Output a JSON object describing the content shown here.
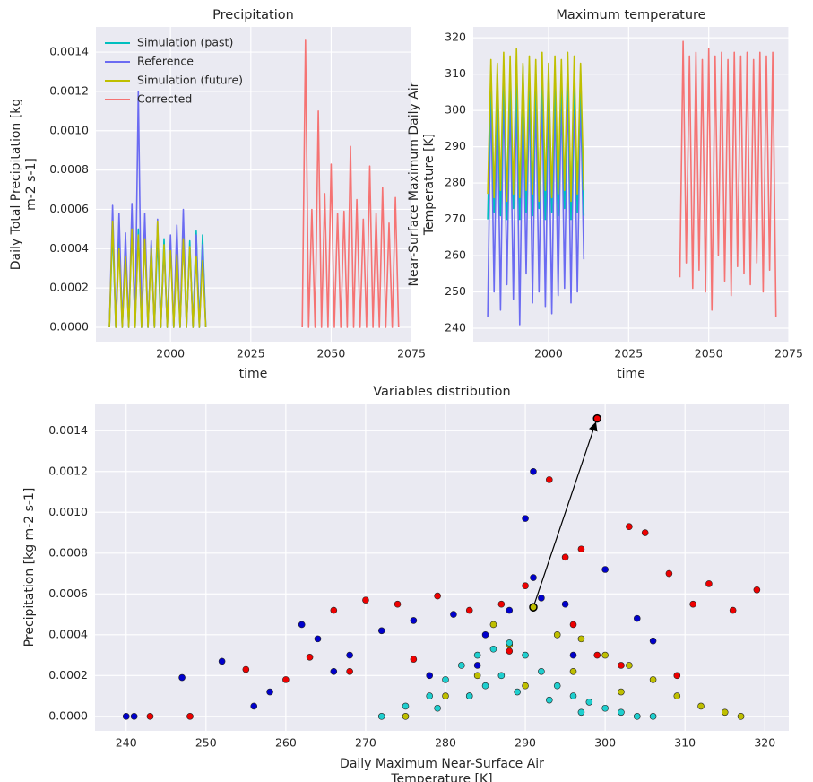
{
  "chart_data": [
    {
      "type": "line",
      "title": "Precipitation",
      "xlabel": "time",
      "ylabel": [
        "Daily Total Precipitation [kg",
        "m-2 s-1]"
      ],
      "xlim": [
        1976.8,
        2074.7
      ],
      "ylim": [
        -7.3e-05,
        0.001528
      ],
      "xticks": [
        2000,
        2025,
        2050,
        2075
      ],
      "yticks": [
        {
          "value": 0,
          "label": "0.0000"
        },
        {
          "value": 0.0002,
          "label": "0.0002"
        },
        {
          "value": 0.0004,
          "label": "0.0004"
        },
        {
          "value": 0.0006,
          "label": "0.0006"
        },
        {
          "value": 0.0008,
          "label": "0.0008"
        },
        {
          "value": 0.001,
          "label": "0.0010"
        },
        {
          "value": 0.0012,
          "label": "0.0012"
        },
        {
          "value": 0.0014,
          "label": "0.0014"
        }
      ],
      "grid": true,
      "legend": "upper left",
      "series": [
        {
          "name": "Simulation (past)",
          "color": "#00bfbf",
          "x": [
            1981,
            1982,
            1983,
            1984,
            1985,
            1986,
            1987,
            1988,
            1989,
            1990,
            1991,
            1992,
            1993,
            1994,
            1995,
            1996,
            1997,
            1998,
            1999,
            2000,
            2001,
            2002,
            2003,
            2004,
            2005,
            2006,
            2007,
            2008,
            2009,
            2010,
            2011
          ],
          "values": [
            0,
            0.0005,
            0,
            0.00045,
            0,
            0.0004,
            0,
            0.00052,
            0,
            0.0005,
            0,
            0.00048,
            0,
            0.00042,
            0,
            0.00046,
            0,
            0.00045,
            0,
            0.00043,
            0,
            0.00041,
            0,
            0.00048,
            0,
            0.00044,
            0,
            0.00049,
            0,
            0.00047,
            0
          ]
        },
        {
          "name": "Reference",
          "color": "#6b6bf2",
          "x": [
            1981,
            1982,
            1983,
            1984,
            1985,
            1986,
            1987,
            1988,
            1989,
            1990,
            1991,
            1992,
            1993,
            1994,
            1995,
            1996,
            1997,
            1998,
            1999,
            2000,
            2001,
            2002,
            2003,
            2004,
            2005,
            2006,
            2007,
            2008,
            2009,
            2010,
            2011
          ],
          "values": [
            0,
            0.00062,
            0,
            0.00058,
            0,
            0.00048,
            0,
            0.00063,
            0,
            0.0012,
            0,
            0.00058,
            0,
            0.00044,
            0,
            0.00055,
            0,
            0.0004,
            0,
            0.00047,
            0,
            0.00052,
            0,
            0.0006,
            0,
            0.00041,
            0,
            0.00047,
            0,
            0.00042,
            0
          ]
        },
        {
          "name": "Simulation (future)",
          "color": "#bfbf00",
          "x": [
            1981,
            1982,
            1983,
            1984,
            1985,
            1986,
            1987,
            1988,
            1989,
            1990,
            1991,
            1992,
            1993,
            1994,
            1995,
            1996,
            1997,
            1998,
            1999,
            2000,
            2001,
            2002,
            2003,
            2004,
            2005,
            2006,
            2007,
            2008,
            2009,
            2010,
            2011
          ],
          "values": [
            0,
            0.00054,
            0,
            0.0004,
            0,
            0.00036,
            0,
            0.0005,
            0,
            0.00047,
            0,
            0.00045,
            0,
            0.0004,
            0,
            0.00054,
            0,
            0.00042,
            0,
            0.00039,
            0,
            0.00037,
            0,
            0.00045,
            0,
            0.00041,
            0,
            0.00036,
            0,
            0.00034,
            0
          ]
        },
        {
          "name": "Corrected",
          "color": "#f57373",
          "x": [
            2041,
            2042,
            2043,
            2044,
            2045,
            2046,
            2047,
            2048,
            2049,
            2050,
            2051,
            2052,
            2053,
            2054,
            2055,
            2056,
            2057,
            2058,
            2059,
            2060,
            2061,
            2062,
            2063,
            2064,
            2065,
            2066,
            2067,
            2068,
            2069,
            2070,
            2071
          ],
          "values": [
            0,
            0.00146,
            0,
            0.0006,
            0,
            0.0011,
            0,
            0.00068,
            0,
            0.00083,
            0,
            0.00058,
            0,
            0.00059,
            0,
            0.00092,
            0,
            0.00065,
            0,
            0.00055,
            0,
            0.00082,
            0,
            0.00058,
            0,
            0.00071,
            0,
            0.00053,
            0,
            0.00066,
            0
          ]
        }
      ]
    },
    {
      "type": "line",
      "title": "Maximum temperature",
      "xlabel": "time",
      "ylabel": [
        "Near-Surface Maximum Daily Air",
        "Temperature [K]"
      ],
      "xlim": [
        1976.5,
        2075
      ],
      "ylim": [
        236.3,
        323
      ],
      "xticks": [
        2000,
        2025,
        2050,
        2075
      ],
      "yticks": [
        240,
        250,
        260,
        270,
        280,
        290,
        300,
        310,
        320
      ],
      "grid": true,
      "series": [
        {
          "name": "Reference",
          "color": "#6b6bf2",
          "x": [
            1981,
            1982,
            1983,
            1984,
            1985,
            1986,
            1987,
            1988,
            1989,
            1990,
            1991,
            1992,
            1993,
            1994,
            1995,
            1996,
            1997,
            1998,
            1999,
            2000,
            2001,
            2002,
            2003,
            2004,
            2005,
            2006,
            2007,
            2008,
            2009,
            2010,
            2011
          ],
          "values": [
            243,
            306,
            250,
            305,
            245,
            307,
            252,
            304,
            248,
            306,
            241,
            305,
            255,
            307,
            247,
            305,
            250,
            306,
            246,
            304,
            244,
            305,
            249,
            306,
            251,
            307,
            247,
            305,
            250,
            304,
            259
          ]
        },
        {
          "name": "Simulation (past)",
          "color": "#00bfbf",
          "x": [
            1981,
            1982,
            1983,
            1984,
            1985,
            1986,
            1987,
            1988,
            1989,
            1990,
            1991,
            1992,
            1993,
            1994,
            1995,
            1996,
            1997,
            1998,
            1999,
            2000,
            2001,
            2002,
            2003,
            2004,
            2005,
            2006,
            2007,
            2008,
            2009,
            2010,
            2011
          ],
          "values": [
            270,
            311,
            272,
            310,
            271,
            312,
            270,
            311,
            273,
            310,
            270,
            312,
            272,
            311,
            271,
            310,
            273,
            312,
            270,
            311,
            272,
            310,
            271,
            311,
            273,
            312,
            270,
            310,
            272,
            311,
            271
          ]
        },
        {
          "name": "Simulation (future)",
          "color": "#bfbf00",
          "x": [
            1981,
            1982,
            1983,
            1984,
            1985,
            1986,
            1987,
            1988,
            1989,
            1990,
            1991,
            1992,
            1993,
            1994,
            1995,
            1996,
            1997,
            1998,
            1999,
            2000,
            2001,
            2002,
            2003,
            2004,
            2005,
            2006,
            2007,
            2008,
            2009,
            2010,
            2011
          ],
          "values": [
            277,
            314,
            276,
            313,
            278,
            316,
            275,
            315,
            277,
            317,
            276,
            313,
            278,
            315,
            277,
            314,
            275,
            316,
            278,
            313,
            276,
            315,
            277,
            314,
            278,
            316,
            275,
            315,
            277,
            313,
            278
          ]
        },
        {
          "name": "Corrected",
          "color": "#f57373",
          "x": [
            2041,
            2042,
            2043,
            2044,
            2045,
            2046,
            2047,
            2048,
            2049,
            2050,
            2051,
            2052,
            2053,
            2054,
            2055,
            2056,
            2057,
            2058,
            2059,
            2060,
            2061,
            2062,
            2063,
            2064,
            2065,
            2066,
            2067,
            2068,
            2069,
            2070,
            2071
          ],
          "values": [
            254,
            319,
            258,
            315,
            251,
            316,
            256,
            314,
            250,
            317,
            245,
            315,
            260,
            316,
            253,
            314,
            249,
            316,
            257,
            315,
            255,
            316,
            252,
            314,
            258,
            316,
            250,
            315,
            256,
            316,
            243
          ]
        }
      ]
    },
    {
      "type": "scatter",
      "title": "Variables distribution",
      "xlabel": [
        "Daily Maximum Near-Surface Air",
        "Temperature [K]"
      ],
      "ylabel": "Precipitation [kg m-2 s-1]",
      "xlim": [
        236.1,
        323
      ],
      "ylim": [
        -7.1e-05,
        0.001533
      ],
      "xticks": [
        240,
        250,
        260,
        270,
        280,
        290,
        300,
        310,
        320
      ],
      "yticks": [
        {
          "value": 0,
          "label": "0.0000"
        },
        {
          "value": 0.0002,
          "label": "0.0002"
        },
        {
          "value": 0.0004,
          "label": "0.0004"
        },
        {
          "value": 0.0006,
          "label": "0.0006"
        },
        {
          "value": 0.0008,
          "label": "0.0008"
        },
        {
          "value": 0.001,
          "label": "0.0010"
        },
        {
          "value": 0.0012,
          "label": "0.0012"
        },
        {
          "value": 0.0014,
          "label": "0.0014"
        }
      ],
      "grid": true,
      "series": [
        {
          "name": "Reference",
          "color": "#0000cc",
          "x": [
            240,
            241,
            247,
            252,
            256,
            262,
            264,
            268,
            272,
            276,
            281,
            285,
            288,
            290,
            291,
            291,
            292,
            295,
            300,
            304,
            306,
            258,
            266,
            278,
            283,
            296,
            284
          ],
          "values": [
            0,
            0,
            0.00019,
            0.00027,
            5e-05,
            0.00045,
            0.00038,
            0.0003,
            0.00042,
            0.00047,
            0.0005,
            0.0004,
            0.00052,
            0.00097,
            0.0012,
            0.00068,
            0.00058,
            0.00055,
            0.00072,
            0.00048,
            0.00037,
            0.00012,
            0.00022,
            0.0002,
            0.0001,
            0.0003,
            0.00025
          ]
        },
        {
          "name": "Corrected",
          "color": "#ee0000",
          "x": [
            243,
            248,
            255,
            260,
            263,
            266,
            270,
            274,
            279,
            283,
            287,
            290,
            293,
            295,
            297,
            299,
            303,
            305,
            308,
            311,
            313,
            316,
            319,
            299,
            288,
            302,
            309,
            276,
            268,
            296
          ],
          "values": [
            0,
            0,
            0.00023,
            0.00018,
            0.00029,
            0.00052,
            0.00057,
            0.00055,
            0.00059,
            0.00052,
            0.00055,
            0.00064,
            0.00116,
            0.00078,
            0.00082,
            0.00146,
            0.00093,
            0.0009,
            0.0007,
            0.00055,
            0.00065,
            0.00052,
            0.00062,
            0.0003,
            0.00032,
            0.00025,
            0.0002,
            0.00028,
            0.00022,
            0.00045
          ]
        },
        {
          "name": "Simulation (future)",
          "color": "#bfbf00",
          "x": [
            275,
            280,
            284,
            288,
            291,
            294,
            297,
            300,
            303,
            306,
            309,
            312,
            315,
            317,
            290,
            286,
            296,
            302
          ],
          "values": [
            0,
            0.0001,
            0.0002,
            0.00035,
            0.00053,
            0.0004,
            0.00038,
            0.0003,
            0.00025,
            0.00018,
            0.0001,
            5e-05,
            2e-05,
            0,
            0.00015,
            0.00045,
            0.00022,
            0.00012
          ]
        },
        {
          "name": "Simulation (past)",
          "color": "#1fcfcf",
          "x": [
            272,
            275,
            278,
            280,
            282,
            284,
            286,
            288,
            290,
            292,
            294,
            296,
            298,
            300,
            302,
            304,
            306,
            285,
            283,
            287,
            289,
            279,
            293,
            297
          ],
          "values": [
            0,
            5e-05,
            0.0001,
            0.00018,
            0.00025,
            0.0003,
            0.00033,
            0.00036,
            0.0003,
            0.00022,
            0.00015,
            0.0001,
            7e-05,
            4e-05,
            2e-05,
            0,
            0,
            0.00015,
            0.0001,
            0.0002,
            0.00012,
            4e-05,
            8e-05,
            2e-05
          ]
        }
      ],
      "arrow": {
        "from": [
          291,
          0.000535
        ],
        "to": [
          299,
          0.00146
        ]
      }
    }
  ]
}
